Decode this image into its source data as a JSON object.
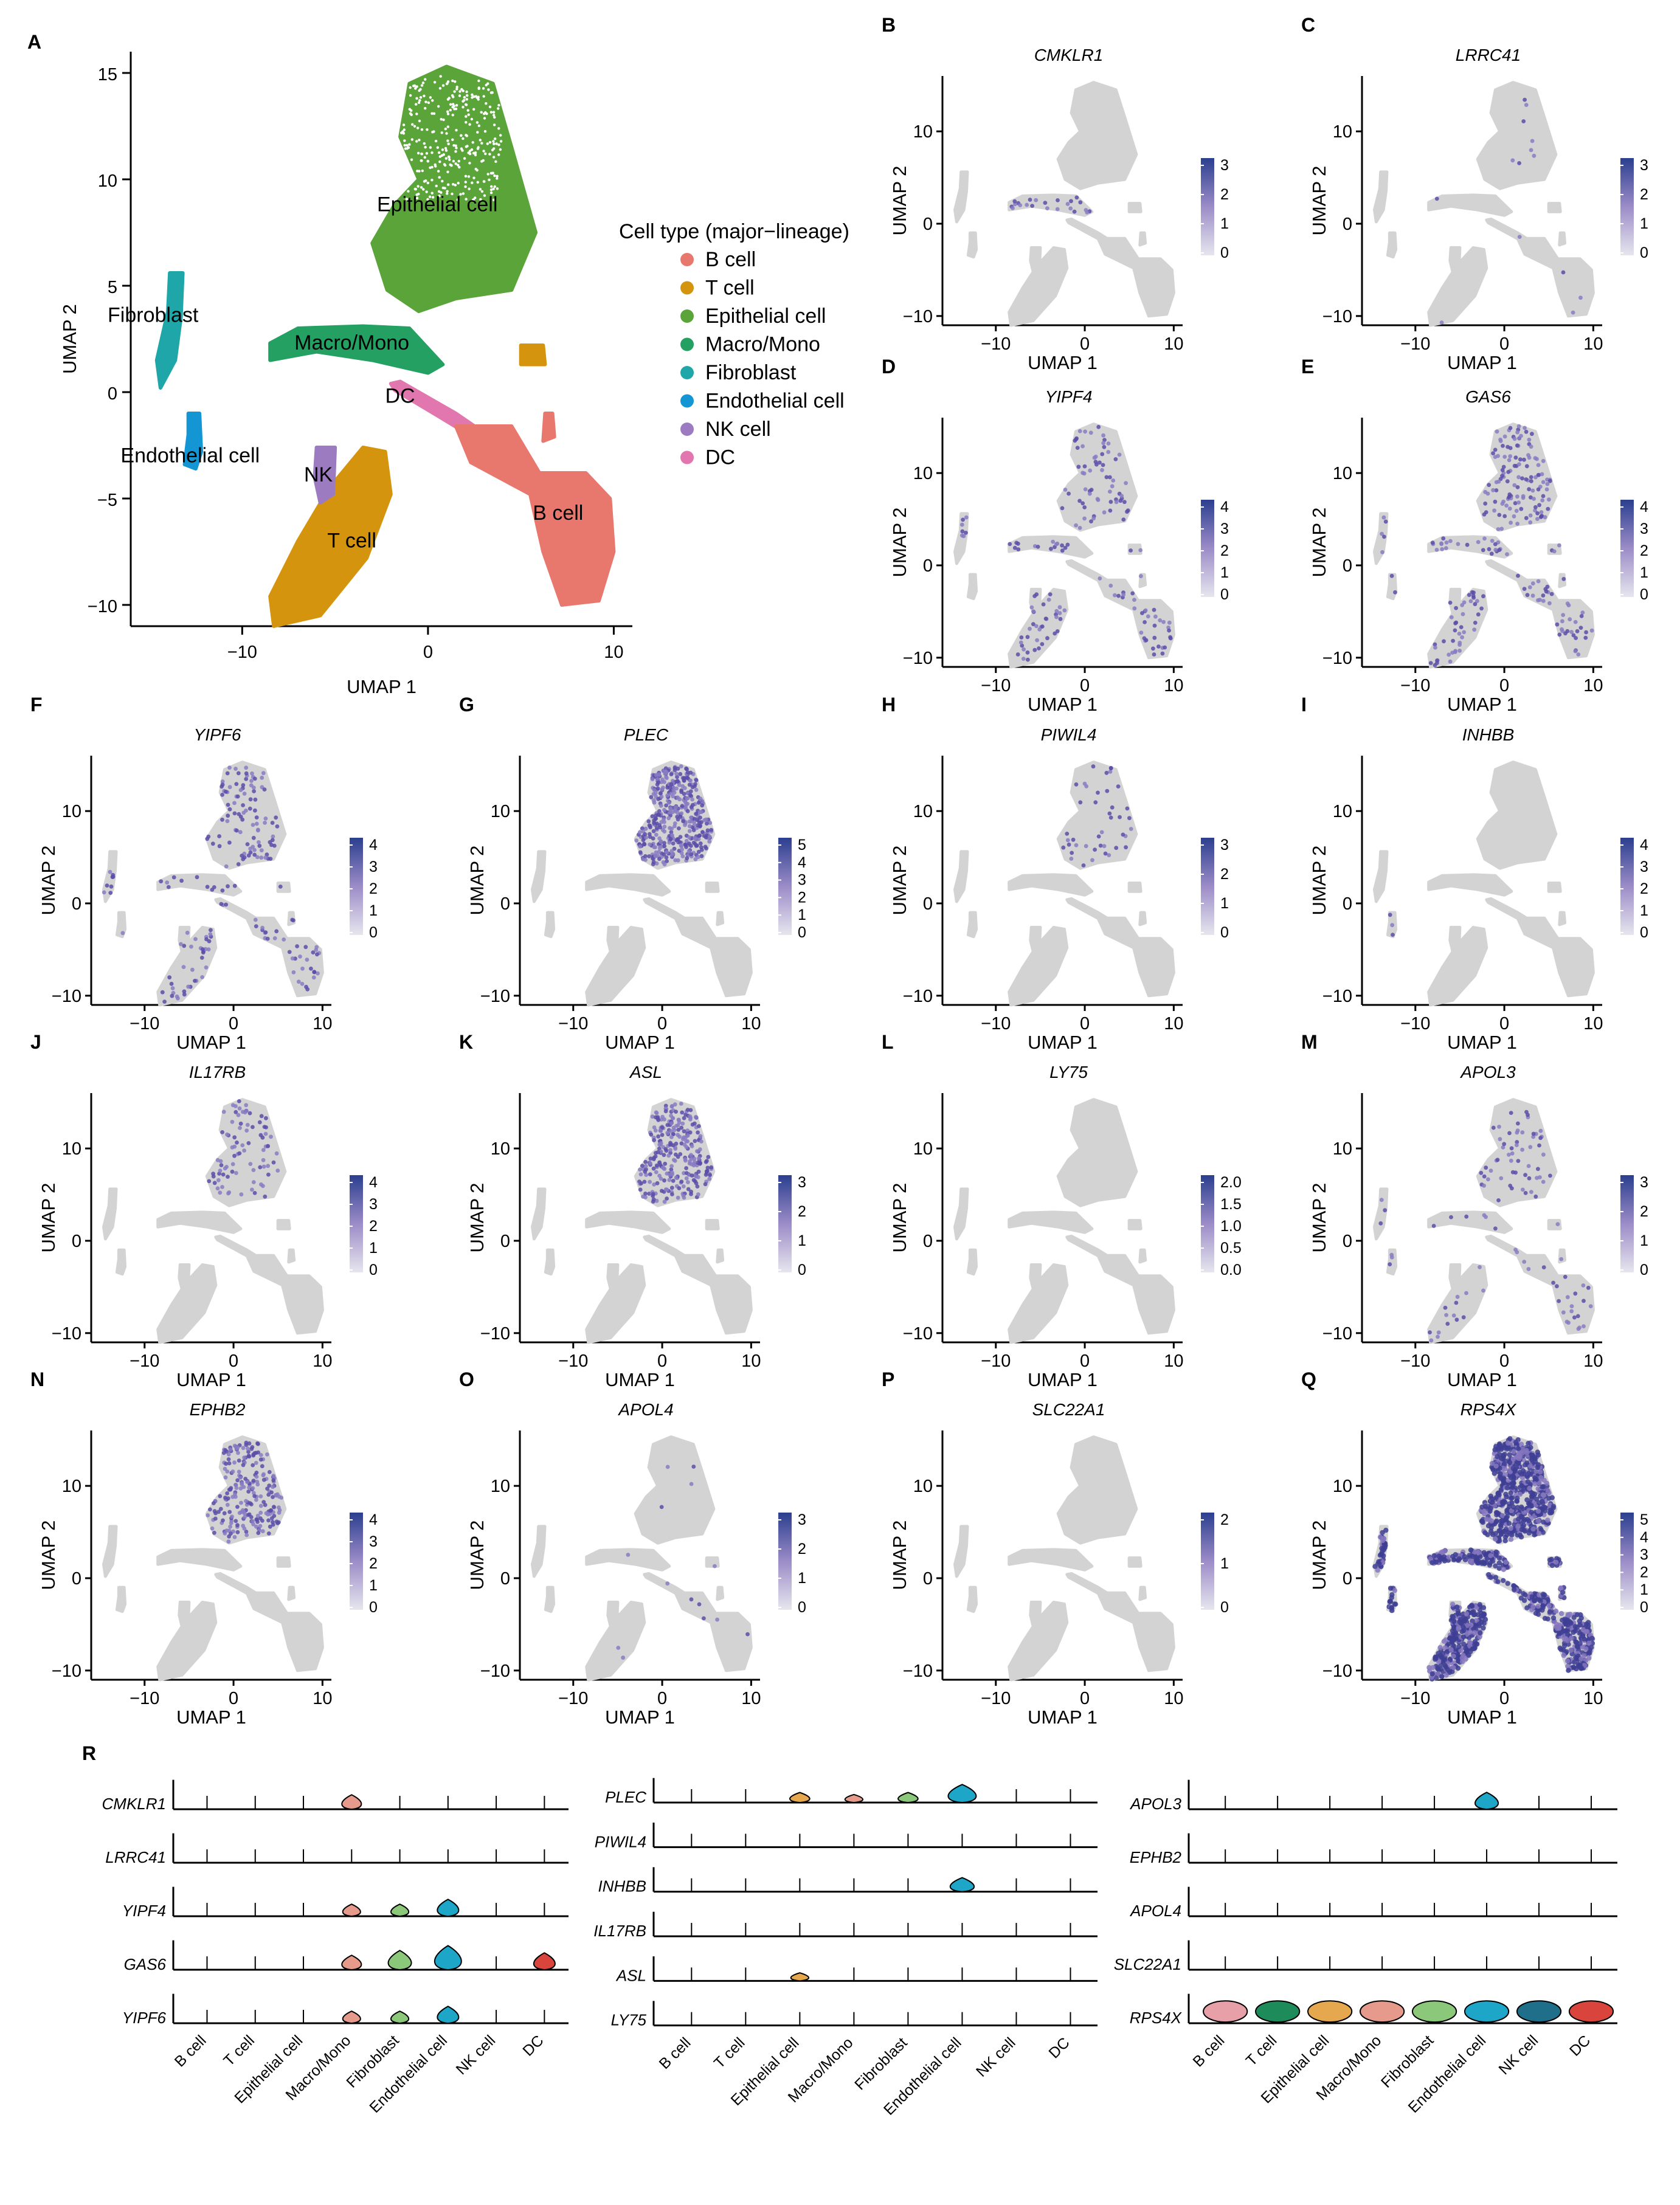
{
  "colors": {
    "B cell": "#E8786E",
    "T cell": "#D4940E",
    "Epithelial cell": "#5BA43A",
    "Macro/Mono": "#23A062",
    "Fibroblast": "#1EA6A8",
    "Endothelial cell": "#1496D4",
    "NK cell": "#9C7BC0",
    "DC": "#E276AE",
    "expr_low": "#D9D9D9",
    "expr_high": "#2B3F8F"
  },
  "panel_a": {
    "letter": "A",
    "xlabel": "UMAP 1",
    "ylabel": "UMAP 2",
    "legend_title": "Cell type (major−lineage)",
    "legend_items": [
      "B cell",
      "T cell",
      "Epithelial cell",
      "Macro/Mono",
      "Fibroblast",
      "Endothelial cell",
      "NK cell",
      "DC"
    ],
    "cluster_labels": [
      "Epithelial cell",
      "Fibroblast",
      "Macro/Mono",
      "DC",
      "Endothelial cell",
      "NK",
      "T cell",
      "B cell"
    ],
    "xticks": [
      "−10",
      "0",
      "10"
    ],
    "yticks": [
      "15",
      "10",
      "5",
      "0",
      "−5",
      "−10"
    ]
  },
  "small_panels": {
    "xlabel": "UMAP 1",
    "ylabel": "UMAP 2",
    "xticks": [
      "−10",
      "0",
      "10"
    ],
    "yticks": [
      "10",
      "0",
      "−10"
    ]
  },
  "features": [
    {
      "letter": "B",
      "gene": "CMKLR1",
      "scale": [
        "3",
        "2",
        "1",
        "0"
      ],
      "density": 0.02,
      "target": "macro"
    },
    {
      "letter": "C",
      "gene": "LRRC41",
      "scale": [
        "3",
        "2",
        "1",
        "0"
      ],
      "density": 0.01,
      "target": "all"
    },
    {
      "letter": "D",
      "gene": "YIPF4",
      "scale": [
        "4",
        "3",
        "2",
        "1",
        "0"
      ],
      "density": 0.12,
      "target": "all"
    },
    {
      "letter": "E",
      "gene": "GAS6",
      "scale": [
        "4",
        "3",
        "2",
        "1",
        "0"
      ],
      "density": 0.18,
      "target": "all"
    },
    {
      "letter": "F",
      "gene": "YIPF6",
      "scale": [
        "4",
        "3",
        "2",
        "1",
        "0"
      ],
      "density": 0.14,
      "target": "all"
    },
    {
      "letter": "G",
      "gene": "PLEC",
      "scale": [
        "5",
        "4",
        "3",
        "2",
        "1",
        "0"
      ],
      "density": 0.3,
      "target": "epi"
    },
    {
      "letter": "H",
      "gene": "PIWIL4",
      "scale": [
        "3",
        "2",
        "1",
        "0"
      ],
      "density": 0.03,
      "target": "epi"
    },
    {
      "letter": "I",
      "gene": "INHBB",
      "scale": [
        "4",
        "3",
        "2",
        "1",
        "0"
      ],
      "density": 0.02,
      "target": "endo"
    },
    {
      "letter": "J",
      "gene": "IL17RB",
      "scale": [
        "4",
        "3",
        "2",
        "1",
        "0"
      ],
      "density": 0.06,
      "target": "epi"
    },
    {
      "letter": "K",
      "gene": "ASL",
      "scale": [
        "3",
        "2",
        "1",
        "0"
      ],
      "density": 0.2,
      "target": "epi"
    },
    {
      "letter": "L",
      "gene": "LY75",
      "scale": [
        "2.0",
        "1.5",
        "1.0",
        "0.5",
        "0.0"
      ],
      "density": 0.0,
      "target": "all"
    },
    {
      "letter": "M",
      "gene": "APOL3",
      "scale": [
        "3",
        "2",
        "1",
        "0"
      ],
      "density": 0.08,
      "target": "all"
    },
    {
      "letter": "N",
      "gene": "EPHB2",
      "scale": [
        "4",
        "3",
        "2",
        "1",
        "0"
      ],
      "density": 0.16,
      "target": "epi"
    },
    {
      "letter": "O",
      "gene": "APOL4",
      "scale": [
        "3",
        "2",
        "1",
        "0"
      ],
      "density": 0.01,
      "target": "all"
    },
    {
      "letter": "P",
      "gene": "SLC22A1",
      "scale": [
        "2",
        "1",
        "0"
      ],
      "density": 0.0,
      "target": "all"
    },
    {
      "letter": "Q",
      "gene": "RPS4X",
      "scale": [
        "5",
        "4",
        "3",
        "2",
        "1",
        "0"
      ],
      "density": 0.95,
      "target": "all"
    }
  ],
  "panel_r": {
    "letter": "R",
    "cell_types": [
      "B cell",
      "T cell",
      "Epithelial cell",
      "Macro/Mono",
      "Fibroblast",
      "Endothelial cell",
      "NK cell",
      "DC"
    ],
    "columns": [
      {
        "genes": [
          {
            "name": "CMKLR1",
            "violins": [
              0,
              0,
              0,
              0.6,
              0,
              0,
              0,
              0
            ]
          },
          {
            "name": "LRRC41",
            "violins": [
              0,
              0,
              0,
              0,
              0,
              0,
              0,
              0
            ]
          },
          {
            "name": "YIPF4",
            "violins": [
              0,
              0,
              0,
              0.5,
              0.5,
              0.7,
              0,
              0
            ]
          },
          {
            "name": "GAS6",
            "violins": [
              0,
              0,
              0,
              0.6,
              0.8,
              1.0,
              0,
              0.7
            ]
          },
          {
            "name": "YIPF6",
            "violins": [
              0,
              0,
              0,
              0.5,
              0.5,
              0.7,
              0,
              0
            ]
          }
        ]
      },
      {
        "genes": [
          {
            "name": "PLEC",
            "violins": [
              0,
              0,
              0.5,
              0.4,
              0.5,
              0.9,
              0,
              0
            ]
          },
          {
            "name": "PIWIL4",
            "violins": [
              0,
              0,
              0,
              0,
              0,
              0,
              0,
              0
            ]
          },
          {
            "name": "INHBB",
            "violins": [
              0,
              0,
              0,
              0,
              0,
              0.7,
              0,
              0
            ]
          },
          {
            "name": "IL17RB",
            "violins": [
              0,
              0,
              0,
              0,
              0,
              0,
              0,
              0
            ]
          },
          {
            "name": "ASL",
            "violins": [
              0,
              0,
              0.4,
              0,
              0,
              0,
              0,
              0
            ]
          },
          {
            "name": "LY75",
            "violins": [
              0,
              0,
              0,
              0,
              0,
              0,
              0,
              0
            ]
          }
        ]
      },
      {
        "genes": [
          {
            "name": "APOL3",
            "violins": [
              0,
              0,
              0,
              0,
              0,
              0.7,
              0,
              0
            ]
          },
          {
            "name": "EPHB2",
            "violins": [
              0,
              0,
              0,
              0,
              0,
              0,
              0,
              0
            ]
          },
          {
            "name": "APOL4",
            "violins": [
              0,
              0,
              0,
              0,
              0,
              0,
              0,
              0
            ]
          },
          {
            "name": "SLC22A1",
            "violins": [
              0,
              0,
              0,
              0,
              0,
              0,
              0,
              0
            ]
          },
          {
            "name": "RPS4X",
            "violins": [
              1,
              1,
              1,
              1,
              1,
              1,
              1,
              1
            ]
          }
        ]
      }
    ]
  },
  "chart_data": [
    {
      "type": "scatter",
      "title": "",
      "xlabel": "UMAP 1",
      "ylabel": "UMAP 2",
      "xlim": [
        -16,
        11
      ],
      "ylim": [
        -11,
        16
      ],
      "legend_title": "Cell type (major−lineage)",
      "legend_placement": "right",
      "series": [
        {
          "name": "Epithelial cell",
          "center": [
            0,
            10
          ],
          "approx_range": {
            "x": [
              -3,
              6
            ],
            "y": [
              4,
              15
            ]
          }
        },
        {
          "name": "B cell",
          "center": [
            8,
            -5
          ],
          "approx_range": {
            "x": [
              2,
              10
            ],
            "y": [
              -10,
              -1
            ]
          }
        },
        {
          "name": "T cell",
          "center": [
            -5,
            -6.5
          ],
          "approx_range": {
            "x": [
              -8,
              -2
            ],
            "y": [
              -11,
              -2.5
            ]
          }
        },
        {
          "name": "Macro/Mono",
          "center": [
            -4,
            2
          ],
          "approx_range": {
            "x": [
              -9,
              0
            ],
            "y": [
              0,
              3
            ]
          }
        },
        {
          "name": "Fibroblast",
          "center": [
            -14,
            3
          ],
          "approx_range": {
            "x": [
              -15,
              -13
            ],
            "y": [
              0,
              6
            ]
          }
        },
        {
          "name": "Endothelial cell",
          "center": [
            -12.5,
            -2.5
          ],
          "approx_range": {
            "x": [
              -13,
              -12
            ],
            "y": [
              -3.5,
              -1
            ]
          }
        },
        {
          "name": "NK cell",
          "center": [
            -5.5,
            -3.5
          ],
          "approx_range": {
            "x": [
              -6,
              -5
            ],
            "y": [
              -4.5,
              -2.5
            ]
          }
        },
        {
          "name": "DC",
          "center": [
            0,
            -0.5
          ],
          "approx_range": {
            "x": [
              -2,
              2
            ],
            "y": [
              -1.5,
              0.5
            ]
          }
        }
      ]
    },
    {
      "type": "scatter",
      "subtype": "feature-plots",
      "xlabel": "UMAP 1",
      "ylabel": "UMAP 2",
      "xlim": [
        -16,
        11
      ],
      "ylim": [
        -11,
        16
      ],
      "panels": [
        "CMKLR1",
        "LRRC41",
        "YIPF4",
        "GAS6",
        "YIPF6",
        "PLEC",
        "PIWIL4",
        "INHBB",
        "IL17RB",
        "ASL",
        "LY75",
        "APOL3",
        "EPHB2",
        "APOL4",
        "SLC22A1",
        "RPS4X"
      ],
      "color_scale_max": [
        3,
        3,
        4,
        4,
        4,
        5,
        3,
        4,
        4,
        3,
        2.0,
        3,
        4,
        3,
        2,
        5
      ]
    },
    {
      "type": "violin",
      "categories": [
        "B cell",
        "T cell",
        "Epithelial cell",
        "Macro/Mono",
        "Fibroblast",
        "Endothelial cell",
        "NK cell",
        "DC"
      ],
      "genes": [
        "CMKLR1",
        "LRRC41",
        "YIPF4",
        "GAS6",
        "YIPF6",
        "PLEC",
        "PIWIL4",
        "INHBB",
        "IL17RB",
        "ASL",
        "LY75",
        "APOL3",
        "EPHB2",
        "APOL4",
        "SLC22A1",
        "RPS4X"
      ]
    }
  ]
}
